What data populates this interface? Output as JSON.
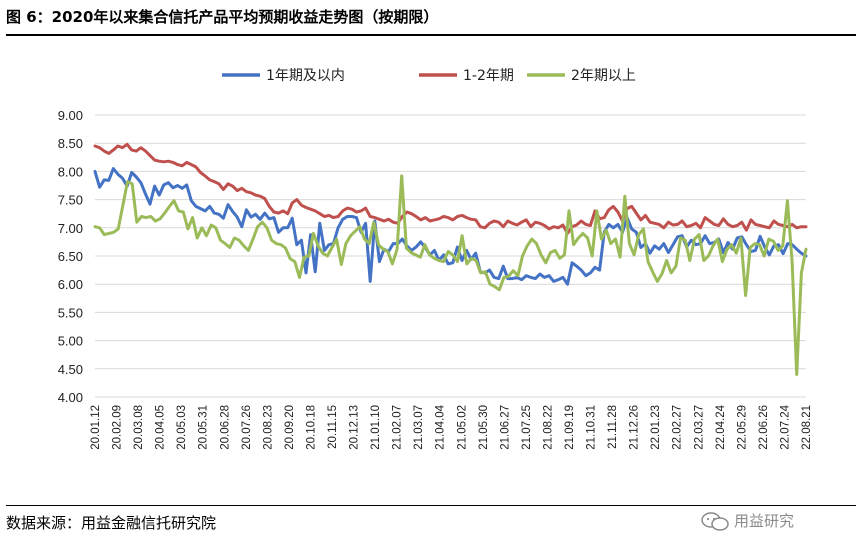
{
  "figure": {
    "title": "图 6：2020年以来集合信托产品平均预期收益走势图（按期限）",
    "source": "数据来源：用益金融信托研究院",
    "watermark": "用益研究"
  },
  "chart_data": {
    "type": "line",
    "title": "",
    "xlabel": "",
    "ylabel": "",
    "ylim": [
      4.0,
      9.0
    ],
    "yticks": [
      "9.00",
      "8.50",
      "8.00",
      "7.50",
      "7.00",
      "6.50",
      "6.00",
      "5.50",
      "5.00",
      "4.50",
      "4.00"
    ],
    "grid": "horizontal",
    "legend_position": "top",
    "x_tick_labels": [
      "20.01.12",
      "20.02.09",
      "20.03.08",
      "20.04.05",
      "20.05.03",
      "20.05.31",
      "20.06.28",
      "20.07.26",
      "20.08.23",
      "20.09.20",
      "20.10.18",
      "20.11.15",
      "20.12.13",
      "21.01.10",
      "21.02.07",
      "21.03.07",
      "21.04.04",
      "21.05.02",
      "21.05.30",
      "21.06.27",
      "21.07.25",
      "21.08.22",
      "21.09.19",
      "21.10.31",
      "21.11.28",
      "21.12.26",
      "22.01.23",
      "22.02.27",
      "22.03.27",
      "22.04.24",
      "22.05.29",
      "22.06.26",
      "22.07.24",
      "22.08.21"
    ],
    "series": [
      {
        "name": "1年期及以内",
        "color": "#4472C4",
        "values": [
          8.0,
          7.72,
          7.85,
          7.84,
          8.05,
          7.95,
          7.88,
          7.74,
          7.98,
          7.9,
          7.8,
          7.6,
          7.42,
          7.74,
          7.58,
          7.76,
          7.8,
          7.71,
          7.75,
          7.7,
          7.76,
          7.48,
          7.38,
          7.34,
          7.3,
          7.38,
          7.26,
          7.24,
          7.17,
          7.41,
          7.29,
          7.19,
          7.02,
          7.32,
          7.19,
          7.24,
          7.15,
          7.26,
          7.16,
          7.18,
          6.92,
          7.0,
          7.0,
          7.17,
          6.7,
          6.78,
          6.2,
          6.88,
          6.22,
          7.08,
          6.6,
          6.7,
          6.72,
          7.0,
          7.15,
          7.2,
          7.2,
          7.18,
          6.92,
          7.08,
          6.05,
          7.12,
          6.4,
          6.62,
          6.58,
          6.72,
          6.72,
          6.8,
          6.68,
          6.6,
          6.66,
          6.75,
          6.65,
          6.52,
          6.6,
          6.42,
          6.52,
          6.36,
          6.38,
          6.66,
          6.42,
          6.6,
          6.44,
          6.55,
          6.22,
          6.2,
          6.25,
          6.12,
          6.1,
          6.32,
          6.1,
          6.1,
          6.12,
          6.08,
          6.15,
          6.12,
          6.1,
          6.18,
          6.12,
          6.15,
          6.05,
          6.08,
          6.12,
          6.0,
          6.38,
          6.32,
          6.25,
          6.15,
          6.2,
          6.3,
          6.25,
          6.92,
          7.06,
          7.0,
          7.06,
          6.92,
          7.18,
          6.98,
          6.92,
          6.65,
          6.72,
          6.55,
          6.68,
          6.62,
          6.72,
          6.56,
          6.7,
          6.84,
          6.86,
          6.66,
          6.78,
          6.7,
          6.72,
          6.86,
          6.72,
          6.74,
          6.8,
          6.56,
          6.74,
          6.62,
          6.82,
          6.84,
          6.7,
          6.58,
          6.6,
          6.85,
          6.66,
          6.52,
          6.68,
          6.7,
          6.54,
          6.72,
          6.7,
          6.62,
          6.55,
          6.5
        ]
      },
      {
        "name": "1-2年期",
        "color": "#C0504D",
        "values": [
          8.45,
          8.42,
          8.36,
          8.32,
          8.38,
          8.45,
          8.42,
          8.48,
          8.38,
          8.36,
          8.42,
          8.36,
          8.28,
          8.2,
          8.18,
          8.17,
          8.18,
          8.16,
          8.12,
          8.1,
          8.16,
          8.12,
          8.08,
          7.98,
          7.92,
          7.85,
          7.82,
          7.78,
          7.68,
          7.78,
          7.74,
          7.66,
          7.7,
          7.64,
          7.62,
          7.58,
          7.56,
          7.52,
          7.38,
          7.28,
          7.26,
          7.3,
          7.25,
          7.44,
          7.5,
          7.4,
          7.36,
          7.33,
          7.3,
          7.25,
          7.2,
          7.22,
          7.18,
          7.2,
          7.3,
          7.35,
          7.33,
          7.28,
          7.3,
          7.35,
          7.2,
          7.18,
          7.15,
          7.12,
          7.15,
          7.1,
          7.08,
          7.2,
          7.28,
          7.25,
          7.2,
          7.14,
          7.18,
          7.12,
          7.14,
          7.16,
          7.2,
          7.18,
          7.14,
          7.2,
          7.22,
          7.18,
          7.15,
          7.14,
          7.02,
          7.0,
          7.08,
          7.12,
          7.1,
          7.02,
          7.12,
          7.08,
          7.05,
          7.1,
          7.14,
          7.02,
          7.1,
          7.08,
          7.04,
          6.98,
          7.02,
          7.0,
          7.05,
          6.9,
          7.02,
          7.05,
          7.12,
          7.06,
          7.04,
          7.3,
          7.16,
          7.18,
          7.32,
          7.38,
          7.28,
          7.12,
          7.34,
          7.38,
          7.26,
          7.14,
          7.22,
          7.1,
          7.08,
          7.06,
          7.0,
          7.1,
          7.05,
          7.06,
          7.12,
          7.02,
          7.04,
          7.08,
          7.0,
          7.18,
          7.12,
          7.06,
          7.04,
          7.16,
          7.06,
          7.02,
          7.04,
          7.1,
          6.96,
          7.14,
          7.06,
          7.04,
          7.02,
          7.0,
          7.12,
          7.06,
          7.04,
          7.02,
          7.06,
          7.0,
          7.02,
          7.02
        ]
      },
      {
        "name": "2年期以上",
        "color": "#9BBB59",
        "values": [
          7.02,
          7.0,
          6.88,
          6.9,
          6.92,
          6.98,
          7.4,
          7.82,
          7.78,
          7.1,
          7.2,
          7.18,
          7.2,
          7.12,
          7.16,
          7.26,
          7.38,
          7.48,
          7.3,
          7.28,
          6.98,
          7.18,
          6.82,
          7.0,
          6.86,
          7.05,
          7.0,
          6.78,
          6.72,
          6.65,
          6.82,
          6.78,
          6.68,
          6.6,
          6.8,
          7.02,
          7.1,
          7.0,
          6.78,
          6.72,
          6.7,
          6.64,
          6.45,
          6.4,
          6.12,
          6.48,
          6.5,
          6.9,
          6.68,
          6.55,
          6.5,
          6.65,
          6.8,
          6.35,
          6.72,
          6.86,
          6.94,
          7.02,
          6.8,
          6.72,
          7.1,
          6.7,
          6.62,
          6.58,
          6.36,
          6.62,
          7.92,
          6.64,
          6.56,
          6.52,
          6.48,
          6.7,
          6.52,
          6.46,
          6.42,
          6.4,
          6.58,
          6.52,
          6.4,
          6.86,
          6.36,
          6.46,
          6.42,
          6.2,
          6.22,
          6.0,
          5.96,
          5.9,
          6.12,
          6.14,
          6.24,
          6.15,
          6.5,
          6.68,
          6.8,
          6.72,
          6.52,
          6.38,
          6.56,
          6.6,
          6.46,
          6.52,
          7.3,
          6.7,
          6.82,
          6.9,
          6.82,
          6.5,
          7.3,
          6.8,
          6.96,
          6.72,
          6.8,
          6.48,
          7.56,
          6.72,
          6.52,
          6.88,
          6.98,
          6.4,
          6.22,
          6.05,
          6.18,
          6.42,
          6.2,
          6.32,
          6.82,
          6.78,
          6.42,
          6.8,
          6.88,
          6.42,
          6.5,
          6.68,
          6.8,
          6.4,
          6.62,
          6.7,
          6.55,
          6.82,
          5.8,
          6.65,
          6.72,
          6.7,
          6.5,
          6.8,
          6.76,
          6.6,
          6.68,
          7.48,
          6.4,
          4.4,
          6.2,
          6.62
        ]
      }
    ]
  }
}
